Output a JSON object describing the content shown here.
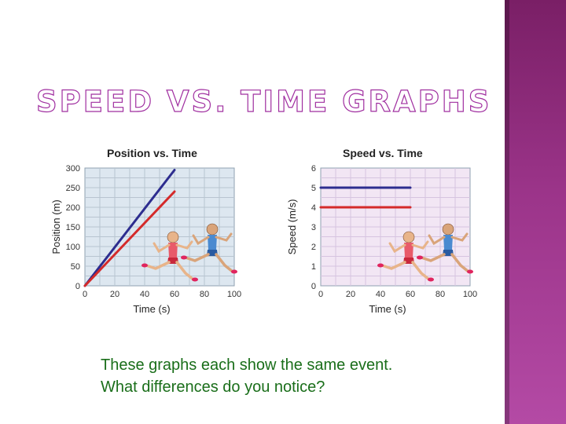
{
  "slide": {
    "title": "SPEED VS. TIME GRAPHS",
    "prompt_line1": "These graphs each show the same event.",
    "prompt_line2": "What differences do you notice?",
    "accent": "#a02fa0",
    "band_color": "#9b3489",
    "prompt_color": "#1a6e1a"
  },
  "chart_data": [
    {
      "type": "line",
      "title": "Position vs. Time",
      "xlabel": "Time (s)",
      "ylabel": "Position (m)",
      "xlim": [
        0,
        100
      ],
      "ylim": [
        0,
        300
      ],
      "xticks": [
        0,
        20,
        40,
        60,
        80,
        100
      ],
      "yticks": [
        0,
        50,
        100,
        150,
        200,
        250,
        300
      ],
      "grid": true,
      "background": "#dde7f0",
      "series": [
        {
          "color": "#2d2d8f",
          "x": [
            0,
            60
          ],
          "y": [
            0,
            295
          ]
        },
        {
          "color": "#d42a2a",
          "x": [
            0,
            60
          ],
          "y": [
            0,
            240
          ]
        }
      ]
    },
    {
      "type": "line",
      "title": "Speed vs. Time",
      "xlabel": "Time (s)",
      "ylabel": "Speed (m/s)",
      "xlim": [
        0,
        100
      ],
      "ylim": [
        0,
        6
      ],
      "xticks": [
        0,
        20,
        40,
        60,
        80,
        100
      ],
      "yticks": [
        0,
        1,
        2,
        3,
        4,
        5,
        6
      ],
      "grid": true,
      "background": "#f2e6f4",
      "series": [
        {
          "color": "#2d2d8f",
          "x": [
            0,
            60
          ],
          "y": [
            5,
            5
          ]
        },
        {
          "color": "#d42a2a",
          "x": [
            0,
            60
          ],
          "y": [
            4,
            4
          ]
        }
      ]
    }
  ]
}
